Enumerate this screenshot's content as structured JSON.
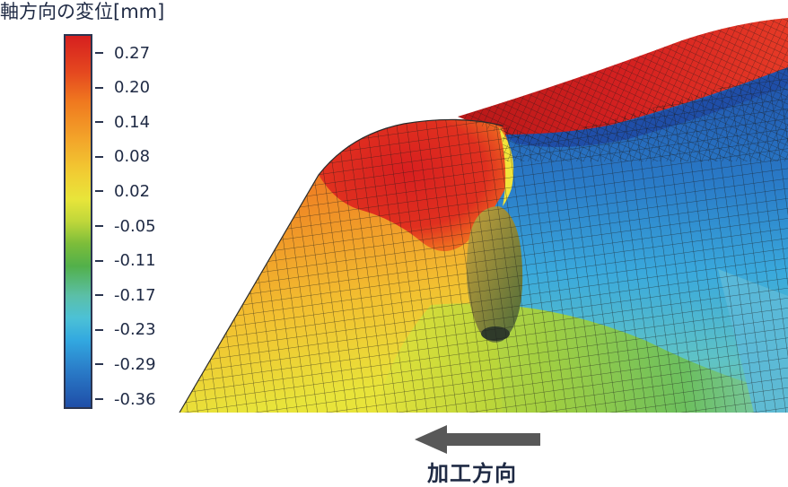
{
  "legend": {
    "title": "軸方向の変位[mm]",
    "tick_labels": [
      "0.27",
      "0.20",
      "0.14",
      "0.08",
      "0.02",
      "-0.05",
      "-0.11",
      "-0.17",
      "-0.23",
      "-0.29",
      "-0.36"
    ],
    "colors": [
      "#d61f1f",
      "#f07a1f",
      "#f1cd33",
      "#e8e53a",
      "#7cbd3a",
      "#5bbfa8",
      "#32a8e0",
      "#1f4ea8"
    ]
  },
  "direction": {
    "label": "加工方向",
    "arrow": "left-arrow-icon"
  }
}
